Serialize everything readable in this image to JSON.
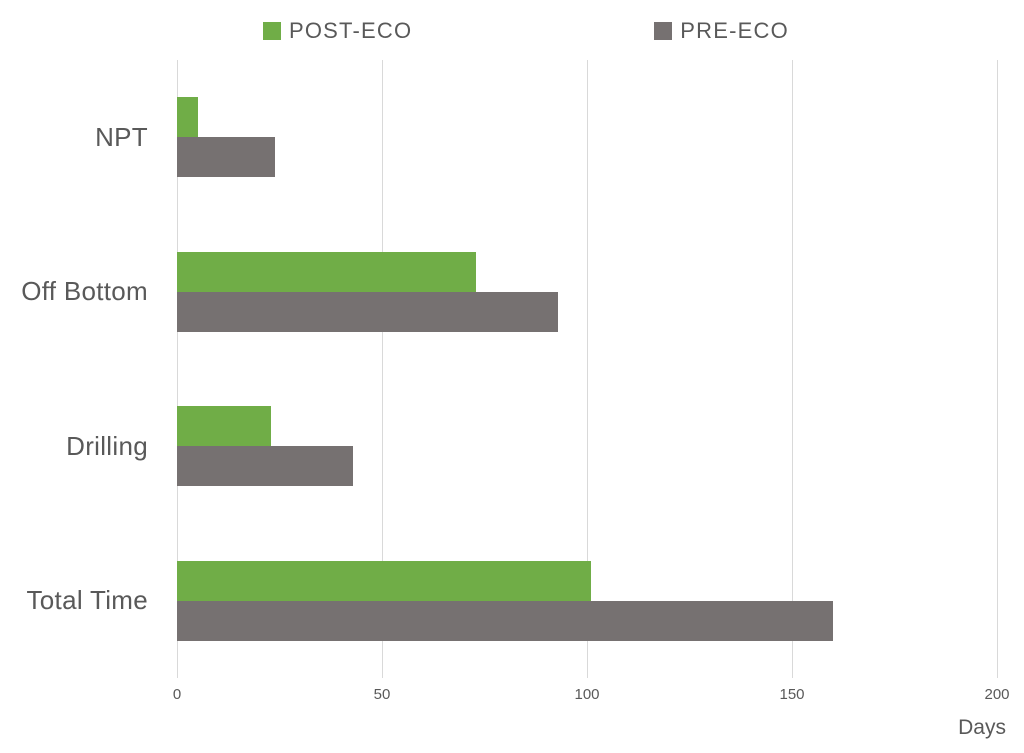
{
  "chart_data": {
    "type": "bar",
    "orientation": "horizontal",
    "categories": [
      "NPT",
      "Off Bottom",
      "Drilling",
      "Total Time"
    ],
    "series": [
      {
        "name": "POST-ECO",
        "color": "#70AD47",
        "values": [
          5,
          73,
          23,
          101
        ]
      },
      {
        "name": "PRE-ECO",
        "color": "#767171",
        "values": [
          24,
          93,
          43,
          160
        ]
      }
    ],
    "xlabel": "Days",
    "xlim": [
      0,
      200
    ],
    "xticks": [
      0,
      50,
      100,
      150,
      200
    ],
    "grid": "vertical",
    "gridline_color": "#D9D9D9",
    "text_color": "#595959",
    "legend_position": "top",
    "background_color": "#FFFFFF"
  }
}
